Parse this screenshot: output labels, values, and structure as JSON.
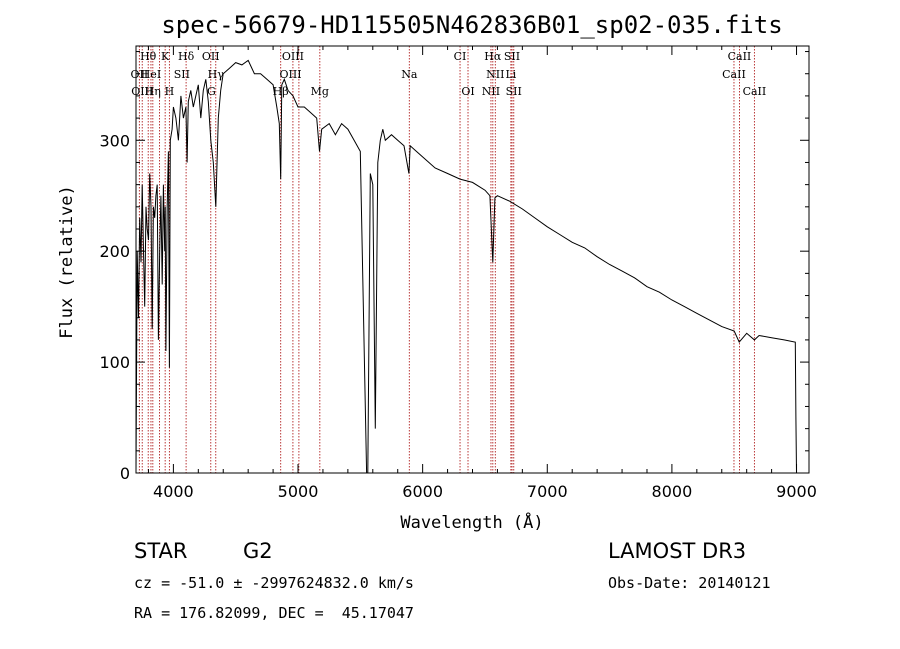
{
  "chart_data": {
    "type": "line",
    "title": "spec-56679-HD115505N462836B01_sp02-035.fits",
    "xlabel": "Wavelength (Å)",
    "ylabel": "Flux (relative)",
    "xlim": [
      3700,
      9100
    ],
    "ylim": [
      0,
      385
    ],
    "xticks": [
      4000,
      5000,
      6000,
      7000,
      8000,
      9000
    ],
    "yticks": [
      0,
      100,
      200,
      300
    ],
    "series": [
      {
        "name": "spectrum",
        "x": [
          3700,
          3710,
          3720,
          3730,
          3740,
          3750,
          3760,
          3770,
          3780,
          3790,
          3800,
          3810,
          3820,
          3830,
          3840,
          3850,
          3860,
          3870,
          3880,
          3890,
          3900,
          3910,
          3920,
          3930,
          3934,
          3940,
          3950,
          3960,
          3968,
          3975,
          3990,
          4000,
          4020,
          4040,
          4060,
          4080,
          4100,
          4110,
          4120,
          4140,
          4160,
          4180,
          4200,
          4220,
          4240,
          4260,
          4280,
          4300,
          4320,
          4340,
          4360,
          4380,
          4400,
          4450,
          4500,
          4550,
          4600,
          4650,
          4700,
          4750,
          4800,
          4830,
          4850,
          4861,
          4870,
          4890,
          4920,
          4960,
          5000,
          5050,
          5100,
          5150,
          5172,
          5190,
          5250,
          5300,
          5350,
          5400,
          5450,
          5500,
          5550,
          5560,
          5580,
          5600,
          5620,
          5640,
          5660,
          5680,
          5700,
          5750,
          5800,
          5850,
          5890,
          5900,
          5950,
          6000,
          6100,
          6200,
          6300,
          6400,
          6500,
          6540,
          6563,
          6580,
          6600,
          6700,
          6800,
          6900,
          7000,
          7100,
          7200,
          7300,
          7400,
          7500,
          7600,
          7700,
          7800,
          7900,
          8000,
          8100,
          8200,
          8300,
          8400,
          8500,
          8540,
          8600,
          8662,
          8700,
          8800,
          8900,
          8990,
          8995,
          9000
        ],
        "y": [
          0,
          200,
          140,
          230,
          190,
          260,
          200,
          150,
          240,
          220,
          210,
          270,
          240,
          130,
          240,
          230,
          250,
          260,
          120,
          200,
          250,
          170,
          260,
          200,
          240,
          110,
          240,
          290,
          95,
          300,
          310,
          330,
          320,
          300,
          340,
          320,
          330,
          280,
          335,
          345,
          330,
          340,
          350,
          320,
          345,
          355,
          335,
          300,
          280,
          240,
          320,
          345,
          360,
          365,
          370,
          368,
          372,
          360,
          360,
          355,
          350,
          330,
          315,
          265,
          350,
          355,
          345,
          340,
          330,
          330,
          325,
          320,
          290,
          310,
          315,
          305,
          315,
          310,
          300,
          290,
          0,
          0,
          270,
          260,
          40,
          280,
          300,
          310,
          300,
          305,
          300,
          295,
          270,
          295,
          290,
          285,
          275,
          270,
          265,
          262,
          255,
          250,
          190,
          248,
          250,
          245,
          238,
          230,
          222,
          215,
          208,
          203,
          195,
          188,
          182,
          176,
          168,
          163,
          156,
          150,
          144,
          138,
          132,
          128,
          118,
          126,
          120,
          124,
          122,
          120,
          118,
          50,
          0
        ]
      }
    ],
    "lines": [
      {
        "label": "Hθ",
        "x": 3798,
        "row": 0
      },
      {
        "label": "K",
        "x": 3934,
        "row": 0
      },
      {
        "label": "Hδ",
        "x": 4102,
        "row": 0
      },
      {
        "label": "OII",
        "x": 4300,
        "row": 0
      },
      {
        "label": "OIII",
        "x": 4959,
        "row": 0
      },
      {
        "label": "CI",
        "x": 6300,
        "row": 0
      },
      {
        "label": "Hα",
        "x": 6563,
        "row": 0
      },
      {
        "label": "SII",
        "x": 6717,
        "row": 0
      },
      {
        "label": "CaII",
        "x": 8542,
        "row": 0
      },
      {
        "label": "OII",
        "x": 3727,
        "row": 1
      },
      {
        "label": "HeI",
        "x": 3820,
        "row": 1
      },
      {
        "label": "SII",
        "x": 4068,
        "row": 1
      },
      {
        "label": "Hγ",
        "x": 4340,
        "row": 1
      },
      {
        "label": "OIII",
        "x": 4940,
        "row": 1
      },
      {
        "label": "Na",
        "x": 5893,
        "row": 1
      },
      {
        "label": "NII",
        "x": 6583,
        "row": 1
      },
      {
        "label": "Li",
        "x": 6708,
        "row": 1
      },
      {
        "label": "CaII",
        "x": 8498,
        "row": 1
      },
      {
        "label": "OIII",
        "x": 3750,
        "row": 2
      },
      {
        "label": "Hη",
        "x": 3835,
        "row": 2
      },
      {
        "label": "H",
        "x": 3968,
        "row": 2
      },
      {
        "label": "G",
        "x": 4305,
        "row": 2
      },
      {
        "label": "Hβ",
        "x": 4861,
        "row": 2
      },
      {
        "label": "Mg",
        "x": 5175,
        "row": 2
      },
      {
        "label": "OI",
        "x": 6364,
        "row": 2
      },
      {
        "label": "NII",
        "x": 6548,
        "row": 2
      },
      {
        "label": "SII",
        "x": 6731,
        "row": 2
      },
      {
        "label": "CaII",
        "x": 8662,
        "row": 2
      }
    ],
    "line_markers_x": [
      3727,
      3750,
      3798,
      3820,
      3835,
      3889,
      3934,
      3968,
      4102,
      4300,
      4340,
      4861,
      4959,
      5007,
      5175,
      5893,
      6300,
      6364,
      6548,
      6563,
      6583,
      6708,
      6717,
      6731,
      8498,
      8542,
      8662
    ]
  },
  "info": {
    "object_class": "STAR",
    "subclass": "G2",
    "survey": "LAMOST DR3",
    "cz_line": "cz = -51.0 ± -2997624832.0 km/s",
    "obs_date": "Obs-Date: 20140121",
    "coords": "RA = 176.82099, DEC =  45.17047"
  }
}
